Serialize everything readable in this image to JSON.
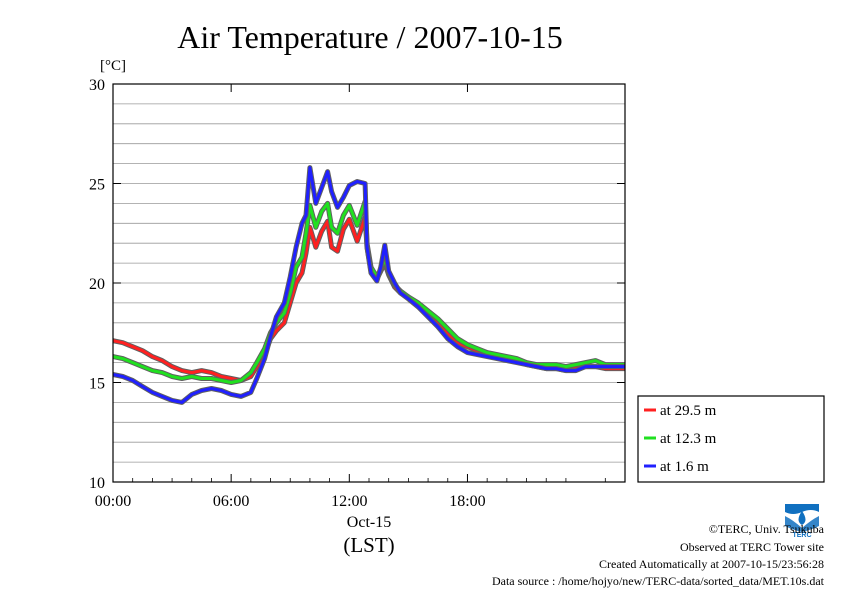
{
  "chart_data": {
    "type": "line",
    "title": "Air Temperature / 2007-10-15",
    "ylabel": "[°C]",
    "xlabel": "(LST)",
    "date_label": "Oct-15",
    "xlim": [
      0,
      26
    ],
    "ylim": [
      10,
      30
    ],
    "x_ticks": [
      {
        "value": 0,
        "label": "00:00"
      },
      {
        "value": 6,
        "label": "06:00"
      },
      {
        "value": 12,
        "label": "12:00"
      },
      {
        "value": 18,
        "label": "18:00"
      }
    ],
    "y_ticks": [
      10,
      15,
      20,
      25,
      30
    ],
    "grid": true,
    "legend_placement": "right",
    "series": [
      {
        "name": "at 29.5 m",
        "color": "#ff2020",
        "x": [
          0,
          0.5,
          1,
          1.5,
          2,
          2.5,
          3,
          3.5,
          4,
          4.5,
          5,
          5.5,
          6,
          6.5,
          7,
          7.3,
          7.7,
          8,
          8.3,
          8.7,
          9,
          9.3,
          9.6,
          9.8,
          10,
          10.3,
          10.6,
          10.9,
          11.1,
          11.4,
          11.7,
          12,
          12.4,
          12.8,
          12.9,
          13.1,
          13.4,
          13.6,
          13.8,
          14,
          14.3,
          14.6,
          15,
          15.5,
          16,
          16.5,
          17,
          17.5,
          18,
          18.5,
          19,
          19.5,
          20,
          20.5,
          21,
          21.5,
          22,
          22.5,
          23,
          23.5,
          24,
          24.5,
          25,
          25.5,
          26
        ],
        "values": [
          17.1,
          17.0,
          16.8,
          16.6,
          16.3,
          16.1,
          15.8,
          15.6,
          15.5,
          15.6,
          15.5,
          15.3,
          15.2,
          15.1,
          15.3,
          15.8,
          16.4,
          17.2,
          17.6,
          18.0,
          19.0,
          20.0,
          20.5,
          21.5,
          22.8,
          21.8,
          22.6,
          23.1,
          21.8,
          21.6,
          22.7,
          23.2,
          22.1,
          23.3,
          21.8,
          20.6,
          20.2,
          20.6,
          21.0,
          20.4,
          19.8,
          19.5,
          19.3,
          18.9,
          18.4,
          18.0,
          17.5,
          17.0,
          16.8,
          16.6,
          16.4,
          16.3,
          16.2,
          16.1,
          15.9,
          15.8,
          15.7,
          15.7,
          15.6,
          15.7,
          15.8,
          15.8,
          15.7,
          15.7,
          15.7
        ]
      },
      {
        "name": "at 12.3 m",
        "color": "#20e020",
        "x": [
          0,
          0.5,
          1,
          1.5,
          2,
          2.5,
          3,
          3.5,
          4,
          4.5,
          5,
          5.5,
          6,
          6.5,
          7,
          7.3,
          7.7,
          8,
          8.3,
          8.7,
          9,
          9.3,
          9.6,
          9.8,
          10,
          10.3,
          10.6,
          10.9,
          11.1,
          11.4,
          11.7,
          12,
          12.4,
          12.8,
          12.9,
          13.1,
          13.4,
          13.6,
          13.8,
          14,
          14.3,
          14.6,
          15,
          15.5,
          16,
          16.5,
          17,
          17.5,
          18,
          18.5,
          19,
          19.5,
          20,
          20.5,
          21,
          21.5,
          22,
          22.5,
          23,
          23.5,
          24,
          24.5,
          25,
          25.5,
          26
        ],
        "values": [
          16.3,
          16.2,
          16.0,
          15.8,
          15.6,
          15.5,
          15.3,
          15.2,
          15.3,
          15.2,
          15.2,
          15.1,
          15.0,
          15.1,
          15.5,
          16.0,
          16.7,
          17.5,
          18.0,
          18.5,
          19.5,
          20.8,
          21.3,
          22.5,
          23.9,
          22.8,
          23.6,
          24.0,
          22.8,
          22.5,
          23.4,
          23.9,
          22.9,
          24.1,
          22.0,
          20.8,
          20.3,
          20.7,
          21.2,
          20.5,
          19.9,
          19.6,
          19.3,
          19.0,
          18.6,
          18.2,
          17.7,
          17.2,
          16.9,
          16.7,
          16.5,
          16.4,
          16.3,
          16.2,
          16.0,
          15.9,
          15.9,
          15.9,
          15.8,
          15.9,
          16.0,
          16.1,
          15.9,
          15.9,
          15.9
        ]
      },
      {
        "name": "at 1.6 m",
        "color": "#2020ff",
        "x": [
          0,
          0.5,
          1,
          1.5,
          2,
          2.5,
          3,
          3.5,
          4,
          4.5,
          5,
          5.5,
          6,
          6.5,
          7,
          7.3,
          7.7,
          8,
          8.3,
          8.7,
          9,
          9.3,
          9.6,
          9.8,
          10,
          10.3,
          10.6,
          10.9,
          11.1,
          11.4,
          11.7,
          12,
          12.4,
          12.8,
          12.9,
          13.1,
          13.4,
          13.6,
          13.8,
          14,
          14.3,
          14.6,
          15,
          15.5,
          16,
          16.5,
          17,
          17.5,
          18,
          18.5,
          19,
          19.5,
          20,
          20.5,
          21,
          21.5,
          22,
          22.5,
          23,
          23.5,
          24,
          24.5,
          25,
          25.5,
          26
        ],
        "values": [
          15.4,
          15.3,
          15.1,
          14.8,
          14.5,
          14.3,
          14.1,
          14.0,
          14.4,
          14.6,
          14.7,
          14.6,
          14.4,
          14.3,
          14.5,
          15.2,
          16.2,
          17.3,
          18.3,
          19.0,
          20.3,
          21.8,
          23.0,
          23.4,
          25.8,
          24.0,
          24.8,
          25.6,
          24.6,
          23.8,
          24.3,
          24.9,
          25.1,
          25.0,
          21.8,
          20.5,
          20.1,
          20.8,
          21.9,
          20.6,
          20.0,
          19.5,
          19.2,
          18.8,
          18.3,
          17.8,
          17.2,
          16.8,
          16.5,
          16.4,
          16.3,
          16.2,
          16.1,
          16.0,
          15.9,
          15.8,
          15.7,
          15.7,
          15.6,
          15.6,
          15.8,
          15.8,
          15.8,
          15.8,
          15.8
        ]
      }
    ]
  },
  "credits": {
    "copyright": "©TERC, Univ. Tsukuba",
    "observed": "Observed at TERC Tower site",
    "created": "Created Automatically at 2007-10-15/23:56:28",
    "source": "Data source : /home/hojyo/new/TERC-data/sorted_data/MET.10s.dat"
  },
  "logo": {
    "text": "TERC",
    "icon": "terc-logo-icon",
    "color": "#1070c0"
  }
}
